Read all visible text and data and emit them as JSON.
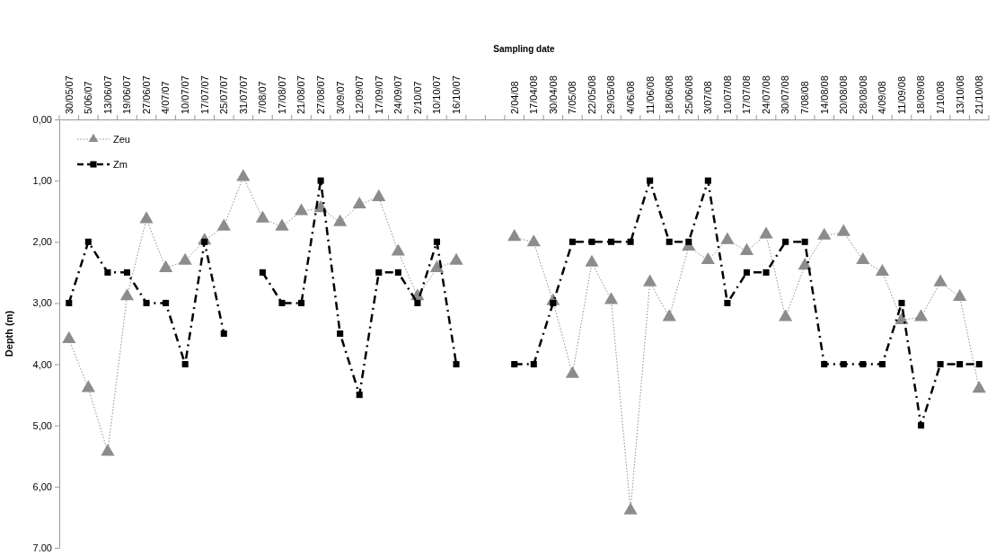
{
  "chart_data": {
    "type": "line",
    "xlabel": "Sampling date",
    "ylabel": "Depth (m)",
    "categories": [
      "30/05/07",
      "5/06/07",
      "13/06/07",
      "19/06/07",
      "27/06/07",
      "4/07/07",
      "10/07/07",
      "17/07/07",
      "25/07/07",
      "31/07/07",
      "7/08/07",
      "17/08/07",
      "21/08/07",
      "27/08/07",
      "3/09/07",
      "12/09/07",
      "17/09/07",
      "24/09/07",
      "2/10/07",
      "10/10/07",
      "16/10/07",
      null,
      null,
      "2/04/08",
      "17/04/08",
      "30/04/08",
      "7/05/08",
      "22/05/08",
      "29/05/08",
      "4/06/08",
      "11/06/08",
      "18/06/08",
      "25/06/08",
      "3/07/08",
      "10/07/08",
      "17/07/08",
      "24/07/08",
      "30/07/08",
      "7/08/08",
      "14/08/08",
      "20/08/08",
      "28/08/08",
      "4/09/08",
      "11/09/08",
      "18/09/08",
      "1/10/08",
      "13/10/08",
      "21/10/08"
    ],
    "ylim": [
      7,
      0
    ],
    "yticks": [
      {
        "value": 0,
        "label": "0,00"
      },
      {
        "value": 1,
        "label": "1,00"
      },
      {
        "value": 2,
        "label": "2,00"
      },
      {
        "value": 3,
        "label": "3,00"
      },
      {
        "value": 4,
        "label": "4,00"
      },
      {
        "value": 5,
        "label": "5,00"
      },
      {
        "value": 6,
        "label": "6,00"
      },
      {
        "value": 7,
        "label": "7.00"
      }
    ],
    "grid": false,
    "legend": "top left",
    "series": [
      {
        "name": "Zeu",
        "color": "#8c8c8c",
        "marker": "triangle",
        "line_style": "dotted",
        "values": [
          3.59,
          4.39,
          5.43,
          2.89,
          1.63,
          2.43,
          2.31,
          1.98,
          1.75,
          0.94,
          1.62,
          1.75,
          1.5,
          1.45,
          1.68,
          1.39,
          1.27,
          2.16,
          2.89,
          2.43,
          2.31,
          null,
          null,
          1.92,
          2.01,
          2.97,
          4.16,
          2.34,
          2.95,
          6.39,
          2.66,
          3.23,
          2.08,
          2.3,
          1.97,
          2.15,
          1.88,
          3.23,
          2.39,
          1.9,
          1.84,
          2.3,
          2.49,
          3.28,
          3.23,
          2.66,
          2.9,
          4.4
        ]
      },
      {
        "name": "Zm",
        "color": "#000000",
        "marker": "square",
        "line_style": "dashed",
        "values": [
          3,
          2,
          2.5,
          2.5,
          3,
          3,
          4,
          2,
          3.5,
          null,
          2.5,
          3,
          3,
          1,
          3.5,
          4.5,
          2.5,
          2.5,
          3,
          2,
          4,
          null,
          null,
          4,
          4,
          3,
          2,
          2,
          2,
          2,
          1,
          2,
          2,
          1,
          3,
          2.5,
          2.5,
          2,
          2,
          4,
          4,
          4,
          4,
          3,
          5,
          4,
          4,
          4
        ]
      }
    ]
  }
}
